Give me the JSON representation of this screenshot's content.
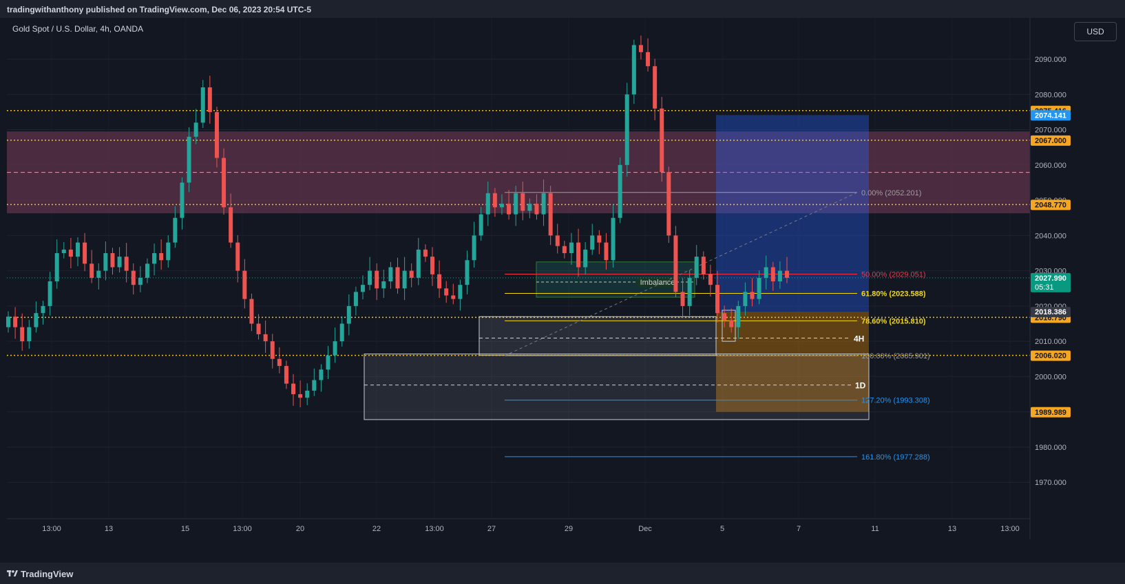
{
  "header": {
    "published": "tradingwithanthony published on TradingView.com, Dec 06, 2023 20:54 UTC-5"
  },
  "chart_title": "Gold Spot / U.S. Dollar, 4h, OANDA",
  "currency_button": "USD",
  "footer": {
    "brand": "TradingView"
  },
  "colors": {
    "background": "#131722",
    "up": "#26a69a",
    "down": "#ef5350",
    "level_line": "#f5c21b",
    "supply_zone": "#5e3349",
    "long_profit": "#2962ff",
    "long_stop": "#ff9800"
  },
  "icons": {
    "logo": "tradingview-logo-icon"
  },
  "chart_data": {
    "type": "candlestick",
    "title": "Gold Spot / U.S. Dollar, 4h, OANDA",
    "y_range": [
      1960,
      2100
    ],
    "y_ticks": [
      1970,
      1980,
      1990,
      2000,
      2010,
      2020,
      2030,
      2040,
      2050,
      2060,
      2070,
      2080,
      2090
    ],
    "y_tick_labels": [
      "1970.000",
      "1980.000",
      "1990.000",
      "2000.000",
      "2010.000",
      "2020.000",
      "2030.000",
      "2040.000",
      "2050.000",
      "2060.000",
      "2070.000",
      "2080.000",
      "2090.000"
    ],
    "x_labels": [
      "13:00",
      "13",
      "15",
      "13:00",
      "20",
      "22",
      "13:00",
      "27",
      "29",
      "Dec",
      "5",
      "7",
      "11",
      "13",
      "13:00"
    ],
    "horizontal_levels": [
      {
        "price": 2075.416,
        "label": "2075.416"
      },
      {
        "price": 2067.0,
        "label": "2067.000"
      },
      {
        "price": 2048.77,
        "label": "2048.770"
      },
      {
        "price": 2016.79,
        "label": "2016.790"
      },
      {
        "price": 2006.02,
        "label": "2006.020"
      }
    ],
    "price_tags": [
      {
        "price": 2074.141,
        "label": "2074.141"
      },
      {
        "price": 2027.99,
        "label": "2027.990",
        "sublabel": "05:31"
      },
      {
        "price": 2018.386,
        "label": "2018.386"
      },
      {
        "price": 1989.989,
        "label": "1989.989"
      }
    ],
    "fibonacci": [
      {
        "level": "0.00% (2052.201)",
        "price": 2052.201
      },
      {
        "level": "50.00% (2029.051)",
        "price": 2029.051
      },
      {
        "level": "61.80% (2023.588)",
        "price": 2023.588
      },
      {
        "level": "78.60% (2015.810)",
        "price": 2015.81
      },
      {
        "level": "100.00% (2005.901)",
        "price": 2005.901
      },
      {
        "level": "127.20% (1993.308)",
        "price": 1993.308
      },
      {
        "level": "161.80% (1977.288)",
        "price": 1977.288
      }
    ],
    "zones": [
      {
        "name": "supply",
        "top": 2069.5,
        "bottom": 2046.3
      },
      {
        "name": "Imbalance",
        "top": 2032.5,
        "bottom": 2022.5,
        "label": "Imbalance"
      },
      {
        "name": "4H",
        "top": 2017.0,
        "bottom": 2006.0,
        "label": "4H"
      },
      {
        "name": "1D",
        "top": 2006.4,
        "bottom": 1987.8,
        "label": "1D"
      }
    ],
    "position": {
      "type": "long",
      "entry": 2018.386,
      "target": 2074.141,
      "stop": 1989.989
    },
    "closes": [
      2017,
      2014,
      2010,
      2014,
      2018,
      2020,
      2027,
      2035,
      2036,
      2034,
      2038,
      2032,
      2028,
      2030,
      2035,
      2031,
      2034,
      2030,
      2026,
      2028,
      2032,
      2035,
      2033,
      2038,
      2045,
      2055,
      2068,
      2072,
      2082,
      2075,
      2062,
      2048,
      2038,
      2030,
      2022,
      2015,
      2012,
      2010,
      2005,
      2003,
      1998,
      1995,
      1994,
      1996,
      1999,
      2002,
      2006,
      2010,
      2015,
      2020,
      2024,
      2026,
      2030,
      2025,
      2027,
      2031,
      2025,
      2030,
      2028,
      2036,
      2034,
      2029,
      2025,
      2023,
      2022,
      2026,
      2033,
      2040,
      2046,
      2052,
      2048,
      2049,
      2046,
      2052,
      2047,
      2049,
      2046,
      2052,
      2040,
      2037,
      2035,
      2038,
      2031,
      2036,
      2040,
      2038,
      2033,
      2045,
      2060,
      2080,
      2094,
      2092,
      2088,
      2076,
      2058,
      2040,
      2024,
      2020,
      2028,
      2034,
      2029,
      2026,
      2018,
      2016,
      2014,
      2020,
      2024,
      2022,
      2028,
      2031,
      2027,
      2030,
      2028
    ],
    "grid": true,
    "legend": "none"
  }
}
